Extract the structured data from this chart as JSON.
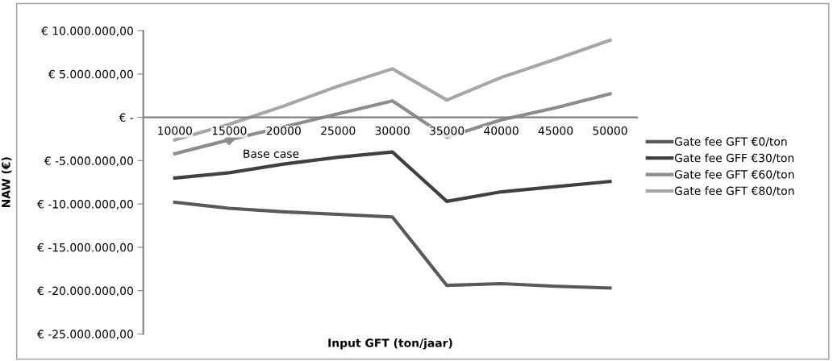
{
  "chart_data": {
    "type": "line",
    "xlabel": "Input GFT (ton/jaar)",
    "ylabel": "NAW (€)",
    "categories": [
      "10000",
      "15000",
      "20000",
      "25000",
      "30000",
      "35000",
      "40000",
      "45000",
      "50000"
    ],
    "series": [
      {
        "name": "Gate fee GFT €0/ton",
        "color": "#595959",
        "values": [
          -9800000,
          -10500000,
          -10900000,
          -11200000,
          -11500000,
          -19400000,
          -19200000,
          -19500000,
          -19700000
        ]
      },
      {
        "name": "Gate fee GFF €30/ton",
        "color": "#404040",
        "values": [
          -7000000,
          -6400000,
          -5400000,
          -4600000,
          -4000000,
          -9700000,
          -8600000,
          -8000000,
          -7400000
        ]
      },
      {
        "name": "Gate fee GFT €60/ton",
        "color": "#8c8c8c",
        "values": [
          -4200000,
          -2600000,
          -1100000,
          400000,
          1900000,
          -2300000,
          -300000,
          1100000,
          2700000
        ]
      },
      {
        "name": "Gate fee GFT €80/ton",
        "color": "#a6a6a6",
        "values": [
          -2600000,
          -800000,
          1300000,
          3600000,
          5600000,
          2000000,
          4600000,
          6700000,
          8900000
        ]
      }
    ],
    "ylim": [
      -25000000,
      10000000
    ],
    "yticks": [
      {
        "value": 10000000,
        "label": "€ 10.000.000,00"
      },
      {
        "value": 5000000,
        "label": "€ 5.000.000,00"
      },
      {
        "value": 0,
        "label": "€ -"
      },
      {
        "value": -5000000,
        "label": "€ -5.000.000,00"
      },
      {
        "value": -10000000,
        "label": "€ -10.000.000,00"
      },
      {
        "value": -15000000,
        "label": "€ -15.000.000,00"
      },
      {
        "value": -20000000,
        "label": "€ -20.000.000,00"
      },
      {
        "value": -25000000,
        "label": "€ -25.000.000,00"
      }
    ],
    "annotations": [
      {
        "text": "Base case",
        "x": "15000",
        "y": -2600000
      }
    ],
    "legend": "right",
    "grid": false,
    "marker": "none",
    "line_style": "solid"
  }
}
